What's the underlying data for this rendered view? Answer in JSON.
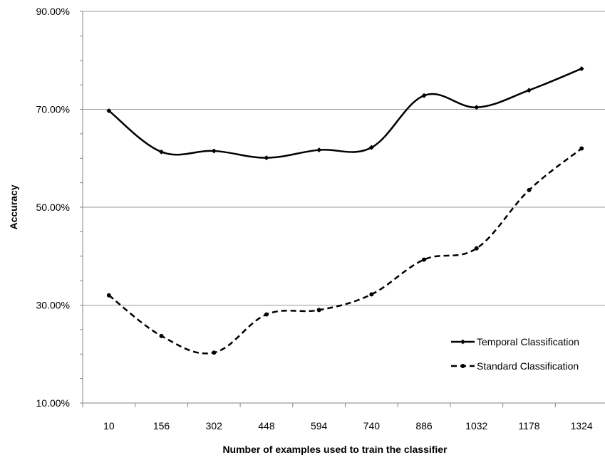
{
  "chart_data": {
    "type": "line",
    "title": "",
    "xlabel": "Number of examples used to train the classifier",
    "ylabel": "Accuracy",
    "categories": [
      "10",
      "156",
      "302",
      "448",
      "594",
      "740",
      "886",
      "1032",
      "1178",
      "1324"
    ],
    "ylim": [
      10,
      90
    ],
    "y_ticks": [
      10,
      30,
      50,
      70,
      90
    ],
    "y_tick_labels": [
      "10.00%",
      "30.00%",
      "50.00%",
      "70.00%",
      "90.00%"
    ],
    "y_unit": "percent",
    "grid": "horizontal major gridlines",
    "smoothed_lines": true,
    "legend_position": "bottom-right inside plot",
    "series": [
      {
        "name": "Temporal Classification",
        "values": [
          69.7,
          61.3,
          61.5,
          60.1,
          61.7,
          62.2,
          72.8,
          70.4,
          73.9,
          78.3
        ],
        "line_style": "solid",
        "marker": "diamond",
        "color": "#000000"
      },
      {
        "name": "Standard Classification",
        "values": [
          32.0,
          23.7,
          20.3,
          28.1,
          29.0,
          32.2,
          39.3,
          41.6,
          53.5,
          62.0
        ],
        "line_style": "dashed",
        "marker": "circle",
        "color": "#000000"
      }
    ]
  }
}
